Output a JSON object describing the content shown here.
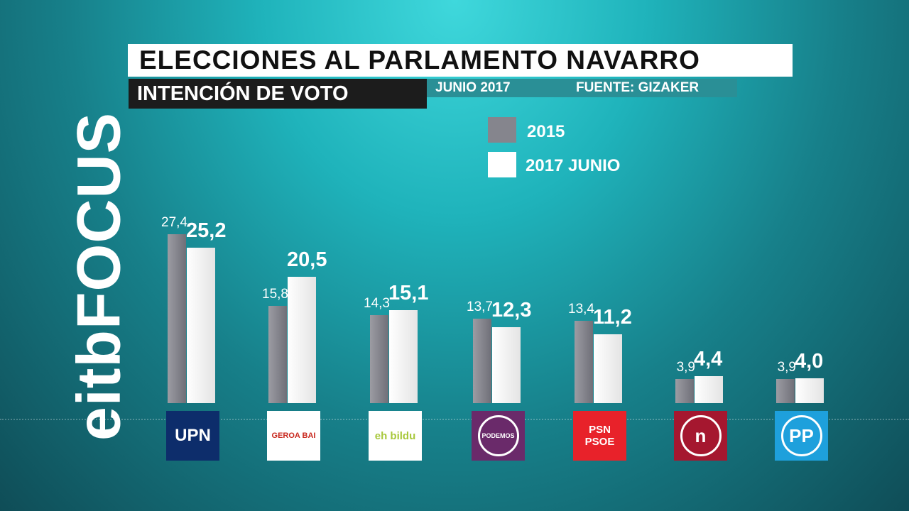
{
  "brand": "eitbFOCUS",
  "header": {
    "title": "ELECCIONES AL PARLAMENTO NAVARRO",
    "subtitle": "INTENCIÓN DE VOTO",
    "date": "JUNIO 2017",
    "source": "FUENTE: GIZAKER"
  },
  "chart_data": {
    "type": "bar",
    "title": "ELECCIONES AL PARLAMENTO NAVARRO",
    "categories": [
      "UPN",
      "GEROA BAI",
      "EH BILDU",
      "PODEMOS",
      "PSN-PSOE",
      "I-E (n)",
      "PP"
    ],
    "series": [
      {
        "name": "2015",
        "color": "#85858d",
        "values": [
          27.4,
          15.8,
          14.3,
          13.7,
          13.4,
          3.9,
          3.9
        ],
        "labels": [
          "27,4",
          "15,8",
          "14,3",
          "13,7",
          "13,4",
          "3,9",
          "3,9"
        ]
      },
      {
        "name": "2017 JUNIO",
        "color": "#ffffff",
        "values": [
          25.2,
          20.5,
          15.1,
          12.3,
          11.2,
          4.4,
          4.0
        ],
        "labels": [
          "25,2",
          "20,5",
          "15,1",
          "12,3",
          "11,2",
          "4,4",
          "4,0"
        ]
      }
    ],
    "ylim": [
      0,
      30
    ],
    "legend": "top-center"
  },
  "logos": [
    {
      "text": "UPN",
      "bg": "#0d2d6b",
      "fg": "#ffffff"
    },
    {
      "text": "GEROA BAI",
      "bg": "#ffffff",
      "fg": "#c8281e"
    },
    {
      "text": "eh bildu",
      "bg": "#ffffff",
      "fg": "#a8c83c"
    },
    {
      "text": "PODEMOS",
      "bg": "#6a2a6a",
      "fg": "#ffffff"
    },
    {
      "text": "PSN PSOE",
      "bg": "#e8222a",
      "fg": "#ffffff"
    },
    {
      "text": "n",
      "bg": "#a5172f",
      "fg": "#ffffff"
    },
    {
      "text": "PP",
      "bg": "#1ea0dc",
      "fg": "#ffffff"
    }
  ]
}
